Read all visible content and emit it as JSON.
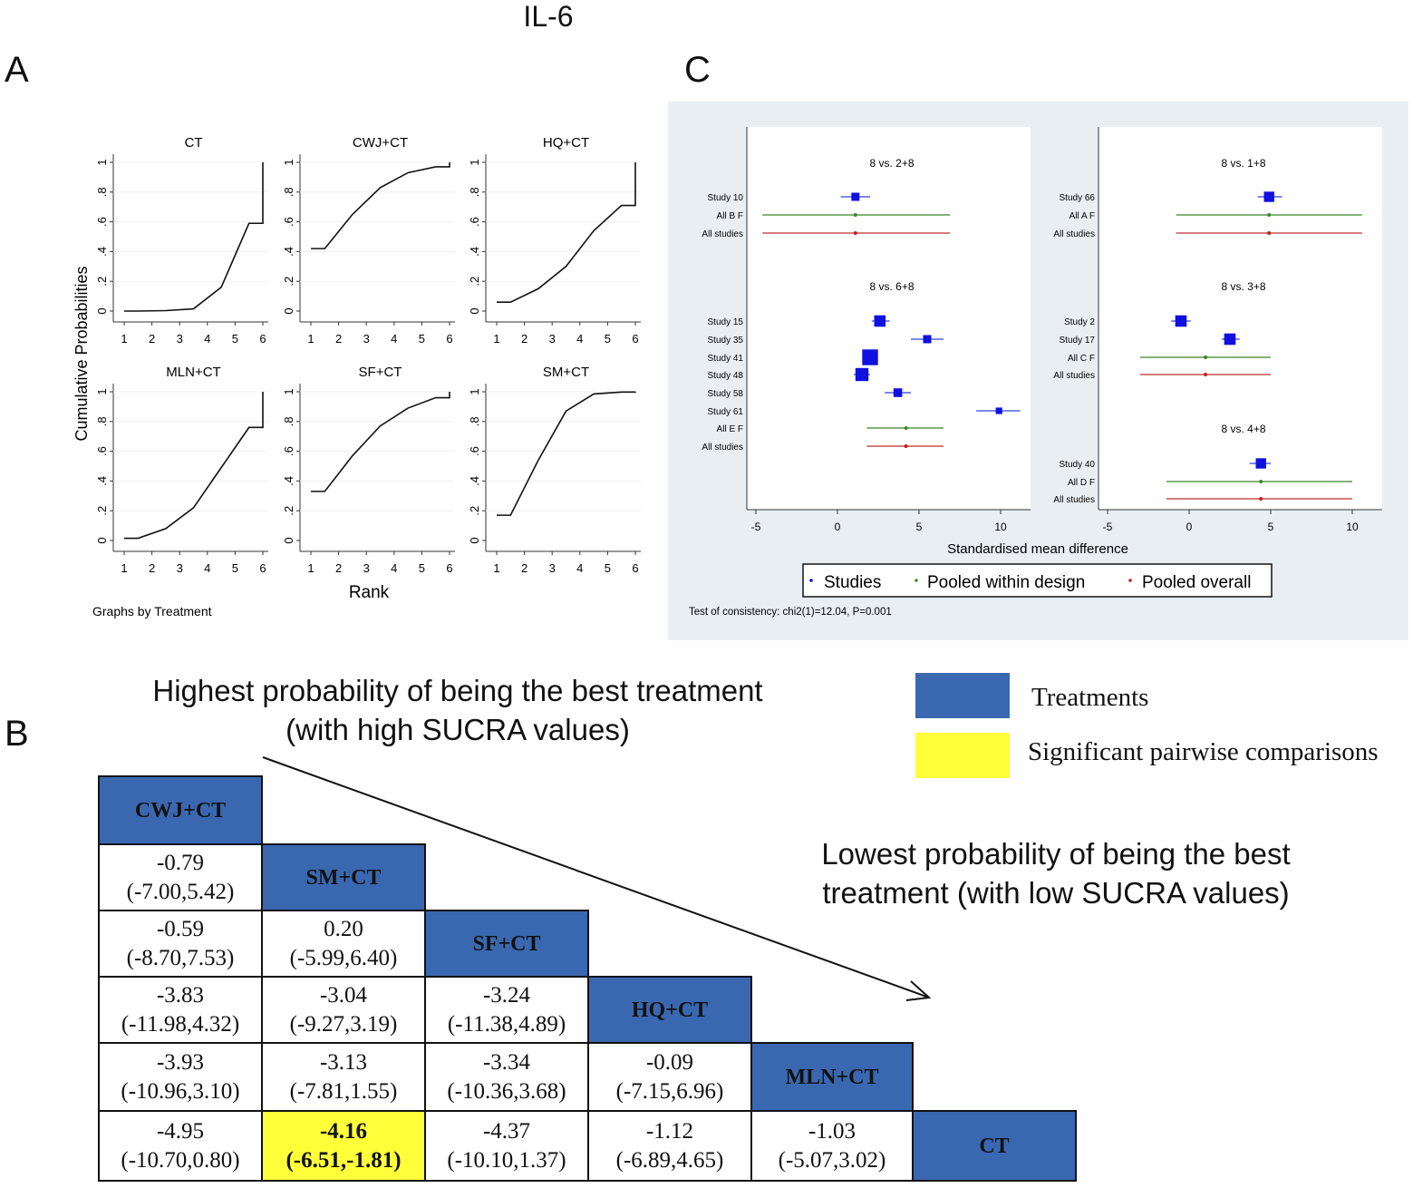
{
  "figure_title": "IL-6",
  "panels": {
    "a": "A",
    "b": "B",
    "c": "C"
  },
  "chart_data": [
    {
      "type": "line",
      "panel": "A",
      "ylabel": "Cumulative Probabilities",
      "xlabel": "Rank",
      "note": "Graphs by Treatment",
      "xlim": [
        1,
        6
      ],
      "ylim": [
        0,
        1
      ],
      "x_ticks": [
        "1",
        "2",
        "3",
        "4",
        "5",
        "6"
      ],
      "y_ticks": [
        "0",
        ".2",
        ".4",
        ".6",
        ".8",
        "1"
      ],
      "ranks": [
        1,
        2,
        3,
        4,
        5,
        6
      ],
      "series": [
        {
          "name": "CT",
          "values": [
            0,
            0.003,
            0.015,
            0.16,
            0.59,
            1
          ]
        },
        {
          "name": "CWJ+CT",
          "values": [
            0.42,
            0.65,
            0.83,
            0.93,
            0.97,
            1
          ]
        },
        {
          "name": "HQ+CT",
          "values": [
            0.06,
            0.15,
            0.3,
            0.54,
            0.71,
            1
          ]
        },
        {
          "name": "MLN+CT",
          "values": [
            0.015,
            0.08,
            0.22,
            0.49,
            0.76,
            1
          ]
        },
        {
          "name": "SF+CT",
          "values": [
            0.33,
            0.57,
            0.77,
            0.89,
            0.96,
            1
          ]
        },
        {
          "name": "SM+CT",
          "values": [
            0.17,
            0.54,
            0.87,
            0.985,
            0.998,
            1
          ]
        }
      ]
    },
    {
      "type": "forest",
      "panel": "C",
      "xlabel": "Standardised mean difference",
      "xlim": [
        -5,
        11.5
      ],
      "x_ticks": [
        "-5",
        "0",
        "5",
        "10"
      ],
      "legend": {
        "position": "bottom",
        "items": [
          {
            "label": "Studies",
            "color": "#1010e0"
          },
          {
            "label": "Pooled within design",
            "color": "#3a8a2a"
          },
          {
            "label": "Pooled overall",
            "color": "#c02020"
          }
        ]
      },
      "note": "Test of consistency: chi2(1)=12.04, P=0.001",
      "columns": [
        [
          {
            "title": "8 vs. 2+8",
            "rows": [
              {
                "label": "Study 10",
                "kind": "study",
                "est": 1.1,
                "lo": 0.2,
                "hi": 2.0,
                "weight": 1
              },
              {
                "label": "All B F",
                "kind": "design",
                "est": 1.1,
                "lo": -4.6,
                "hi": 6.9
              },
              {
                "label": "All studies",
                "kind": "overall",
                "est": 1.1,
                "lo": -4.6,
                "hi": 6.9
              }
            ]
          },
          {
            "title": "8 vs. 6+8",
            "rows": [
              {
                "label": "Study 15",
                "kind": "study",
                "est": 2.6,
                "lo": 2.1,
                "hi": 3.2,
                "weight": 1.6
              },
              {
                "label": "Study 35",
                "kind": "study",
                "est": 5.5,
                "lo": 4.5,
                "hi": 6.5,
                "weight": 1
              },
              {
                "label": "Study 41",
                "kind": "study",
                "est": 2.0,
                "lo": 1.8,
                "hi": 2.3,
                "weight": 2.4
              },
              {
                "label": "Study 48",
                "kind": "study",
                "est": 1.5,
                "lo": 1.0,
                "hi": 2.0,
                "weight": 1.9
              },
              {
                "label": "Study 58",
                "kind": "study",
                "est": 3.7,
                "lo": 2.9,
                "hi": 4.5,
                "weight": 1.1
              },
              {
                "label": "Study 61",
                "kind": "study",
                "est": 9.9,
                "lo": 8.5,
                "hi": 11.2,
                "weight": 0.7
              },
              {
                "label": "All E F",
                "kind": "design",
                "est": 4.2,
                "lo": 1.8,
                "hi": 6.5
              },
              {
                "label": "All studies",
                "kind": "overall",
                "est": 4.2,
                "lo": 1.8,
                "hi": 6.5
              }
            ]
          }
        ],
        [
          {
            "title": "8 vs. 1+8",
            "rows": [
              {
                "label": "Study 66",
                "kind": "study",
                "est": 4.9,
                "lo": 4.2,
                "hi": 5.7,
                "weight": 1.4
              },
              {
                "label": "All A F",
                "kind": "design",
                "est": 4.9,
                "lo": -0.8,
                "hi": 10.6
              },
              {
                "label": "All studies",
                "kind": "overall",
                "est": 4.9,
                "lo": -0.8,
                "hi": 10.6
              }
            ]
          },
          {
            "title": "8 vs. 3+8",
            "rows": [
              {
                "label": "Study 2",
                "kind": "study",
                "est": -0.5,
                "lo": -1.1,
                "hi": 0.1,
                "weight": 1.6
              },
              {
                "label": "Study 17",
                "kind": "study",
                "est": 2.5,
                "lo": 2.0,
                "hi": 3.1,
                "weight": 1.6
              },
              {
                "label": "All C F",
                "kind": "design",
                "est": 1.0,
                "lo": -3.0,
                "hi": 5.0
              },
              {
                "label": "All studies",
                "kind": "overall",
                "est": 1.0,
                "lo": -3.0,
                "hi": 5.0
              }
            ]
          },
          {
            "title": "8 vs. 4+8",
            "rows": [
              {
                "label": "Study 40",
                "kind": "study",
                "est": 4.4,
                "lo": 3.7,
                "hi": 5.0,
                "weight": 1.4
              },
              {
                "label": "All D F",
                "kind": "design",
                "est": 4.4,
                "lo": -1.4,
                "hi": 10.0
              },
              {
                "label": "All studies",
                "kind": "overall",
                "est": 4.4,
                "lo": -1.4,
                "hi": 10.0
              }
            ]
          }
        ]
      ]
    },
    {
      "type": "table",
      "panel": "B",
      "treatments": [
        "CWJ+CT",
        "SM+CT",
        "SF+CT",
        "HQ+CT",
        "MLN+CT",
        "CT"
      ],
      "rows": [
        [],
        [
          {
            "v": "-0.79",
            "ci": "(-7.00,5.42)"
          }
        ],
        [
          {
            "v": "-0.59",
            "ci": "(-8.70,7.53)"
          },
          {
            "v": "0.20",
            "ci": "(-5.99,6.40)"
          }
        ],
        [
          {
            "v": "-3.83",
            "ci": "(-11.98,4.32)"
          },
          {
            "v": "-3.04",
            "ci": "(-9.27,3.19)"
          },
          {
            "v": "-3.24",
            "ci": "(-11.38,4.89)"
          }
        ],
        [
          {
            "v": "-3.93",
            "ci": "(-10.96,3.10)"
          },
          {
            "v": "-3.13",
            "ci": "(-7.81,1.55)"
          },
          {
            "v": "-3.34",
            "ci": "(-10.36,3.68)"
          },
          {
            "v": "-0.09",
            "ci": "(-7.15,6.96)"
          }
        ],
        [
          {
            "v": "-4.95",
            "ci": "(-10.70,0.80)"
          },
          {
            "v": "-4.16",
            "ci": "(-6.51,-1.81)",
            "significant": true
          },
          {
            "v": "-4.37",
            "ci": "(-10.10,1.37)"
          },
          {
            "v": "-1.12",
            "ci": "(-6.89,4.65)"
          },
          {
            "v": "-1.03",
            "ci": "(-5.07,3.02)"
          }
        ]
      ],
      "colors": {
        "treatment": "#3a68b0",
        "significant": "#ffff3a"
      }
    }
  ],
  "panel_b_notes": {
    "highest": "Highest probability of being the best treatment",
    "highest_sub": "(with high SUCRA values)",
    "lowest": "Lowest probability of being the best",
    "lowest_sub": "treatment (with low SUCRA values)"
  },
  "panel_b_legend": [
    {
      "label": "Treatments",
      "color": "#3a68b0"
    },
    {
      "label": "Significant pairwise comparisons",
      "color": "#ffff3a"
    }
  ]
}
